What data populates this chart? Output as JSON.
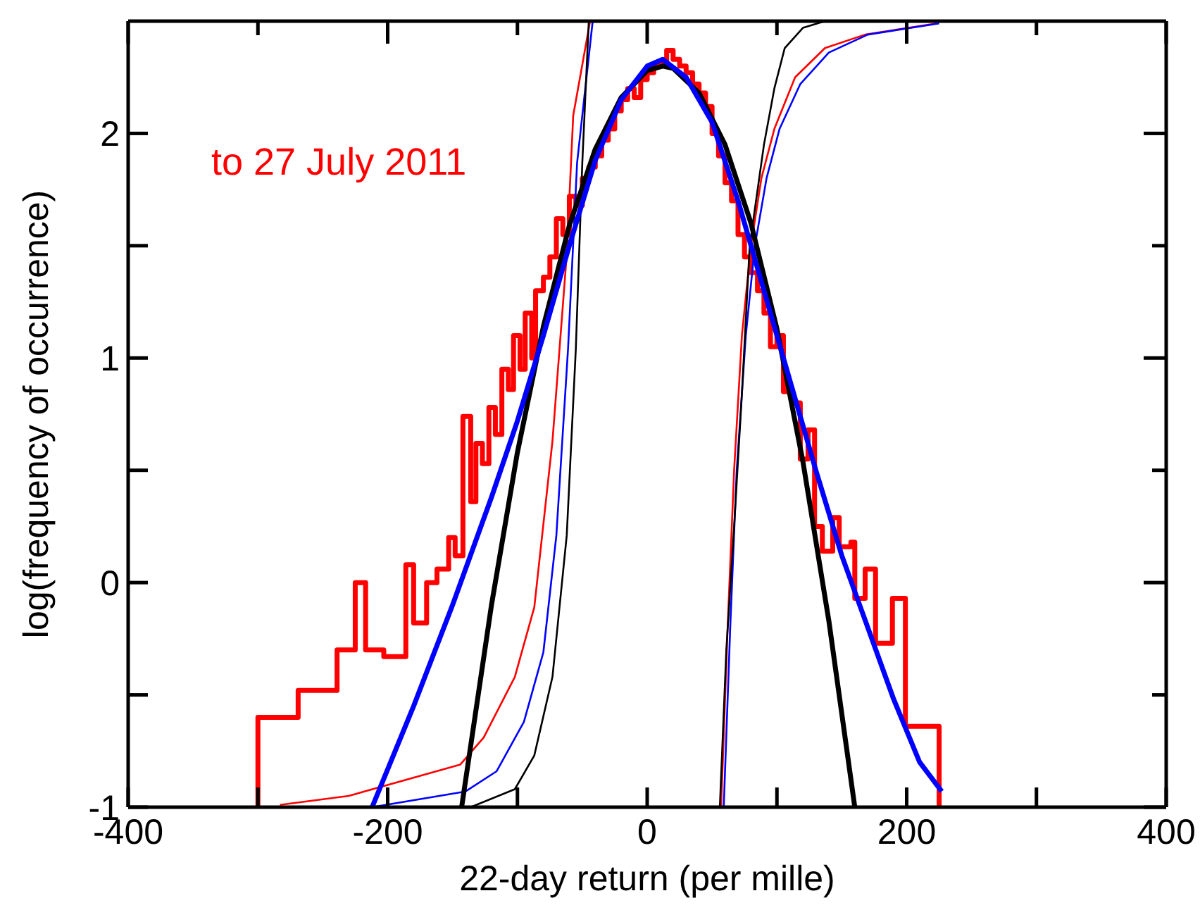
{
  "chart_data": {
    "type": "line",
    "xlabel": "22-day return (per mille)",
    "ylabel": "log(frequency of occurrence)",
    "annotations": [
      "to 27 July 2011"
    ],
    "xlim": [
      -400,
      400
    ],
    "xticks": [
      -400,
      {
        "value": -300,
        "label": null
      },
      -200,
      {
        "value": -100,
        "label": null
      },
      0,
      {
        "value": 100,
        "label": null
      },
      200,
      {
        "value": 300,
        "label": null
      },
      400
    ],
    "ylim": [
      -1,
      2.5
    ],
    "yticks": [
      -1,
      {
        "value": -0.5,
        "label": null
      },
      0,
      {
        "value": 0.5,
        "label": null
      },
      1,
      {
        "value": 1.5,
        "label": null
      },
      2
    ],
    "grid": false,
    "legend": false,
    "marker": "none",
    "line_style": "solid",
    "series": [
      {
        "type": "step",
        "color": "#ff0000",
        "x": [
          -300,
          -300,
          -269,
          -239,
          -225,
          -217,
          -203,
          -186,
          -180,
          -170,
          -162,
          -153,
          -148,
          -142,
          -136,
          -132,
          -127,
          -122,
          -117,
          -112,
          -107,
          -103,
          -98,
          -94,
          -89,
          -86,
          -80,
          -75,
          -70,
          -65,
          -60,
          -55,
          -50,
          -45,
          -40,
          -35,
          -30,
          -25,
          -20,
          -15,
          -10,
          -5,
          0,
          5,
          10,
          15,
          20,
          25,
          30,
          35,
          40,
          45,
          50,
          55,
          60,
          65,
          70,
          75,
          80,
          85,
          90,
          95,
          100,
          105,
          112,
          118,
          124,
          129,
          135,
          143,
          148,
          157,
          160,
          168,
          176,
          189,
          199,
          225
        ],
        "values": [
          -1,
          -0.6,
          -0.48,
          -0.3,
          0.0,
          -0.3,
          -0.33,
          0.08,
          -0.18,
          0.0,
          0.06,
          0.2,
          0.12,
          0.74,
          0.36,
          0.62,
          0.53,
          0.78,
          0.66,
          0.95,
          0.86,
          1.1,
          0.95,
          1.2,
          1.0,
          1.3,
          1.36,
          1.45,
          1.62,
          1.55,
          1.72,
          1.68,
          1.8,
          1.85,
          1.9,
          1.97,
          2.02,
          2.1,
          2.15,
          2.2,
          2.16,
          2.24,
          2.27,
          2.3,
          2.32,
          2.37,
          2.33,
          2.3,
          2.27,
          2.22,
          2.18,
          2.12,
          2.0,
          1.9,
          1.78,
          1.7,
          1.55,
          1.45,
          1.38,
          1.3,
          1.2,
          1.05,
          1.1,
          0.85,
          0.8,
          0.55,
          0.68,
          0.25,
          0.14,
          0.29,
          0.16,
          0.18,
          -0.07,
          0.06,
          -0.27,
          -0.07,
          -0.64,
          -1
        ]
      },
      {
        "type": "line",
        "color": "#ff0000",
        "x": [
          -283,
          -230,
          -144,
          -126,
          -102,
          -87,
          -73,
          -62,
          -57,
          -44
        ],
        "values": [
          -0.99,
          -0.95,
          -0.81,
          -0.69,
          -0.42,
          -0.11,
          0.63,
          1.46,
          2.08,
          2.5
        ]
      },
      {
        "type": "line",
        "color": "#0000ff",
        "x": [
          -212,
          -140,
          -116,
          -95,
          -80,
          -70,
          -61,
          -54,
          -42
        ],
        "values": [
          -1,
          -0.93,
          -0.84,
          -0.62,
          -0.31,
          0.21,
          1.04,
          1.87,
          2.5
        ]
      },
      {
        "type": "line",
        "color": "#000000",
        "x": [
          -136,
          -102,
          -87,
          -73,
          -62,
          -55,
          -50,
          -45
        ],
        "values": [
          -1,
          -0.92,
          -0.77,
          -0.42,
          0.21,
          1.04,
          1.87,
          2.5
        ]
      },
      {
        "type": "line",
        "color": "#ff0000",
        "x": [
          57,
          62,
          67,
          73,
          80,
          88,
          98,
          114,
          137,
          168,
          223
        ],
        "values": [
          -1,
          -0.2,
          0.5,
          1.1,
          1.5,
          1.8,
          2.02,
          2.25,
          2.38,
          2.44,
          2.49
        ]
      },
      {
        "type": "line",
        "color": "#0000ff",
        "x": [
          59,
          64,
          69,
          76,
          83,
          92,
          102,
          118,
          140,
          170,
          225
        ],
        "values": [
          -1,
          -0.2,
          0.5,
          1.1,
          1.5,
          1.8,
          2.02,
          2.22,
          2.36,
          2.44,
          2.49
        ]
      },
      {
        "type": "line",
        "color": "#000000",
        "x": [
          56,
          61,
          67,
          73,
          79,
          90,
          98,
          106,
          120,
          137
        ],
        "values": [
          -1,
          -0.3,
          0.25,
          0.84,
          1.5,
          1.95,
          2.2,
          2.38,
          2.47,
          2.5
        ]
      },
      {
        "type": "line",
        "color": "#000000",
        "x": [
          -143,
          -120,
          -100,
          -80,
          -60,
          -40,
          -20,
          0,
          12,
          20,
          40,
          60,
          80,
          100,
          120,
          140,
          160
        ],
        "values": [
          -1,
          -0.1,
          0.58,
          1.14,
          1.59,
          1.93,
          2.16,
          2.28,
          2.3,
          2.29,
          2.18,
          1.95,
          1.6,
          1.13,
          0.54,
          -0.17,
          -1
        ]
      },
      {
        "type": "line",
        "color": "#0000ff",
        "x": [
          -212,
          -180,
          -150,
          -120,
          -100,
          -80,
          -60,
          -40,
          -20,
          0,
          12,
          30,
          50,
          70,
          90,
          110,
          130,
          150,
          170,
          190,
          210,
          227
        ],
        "values": [
          -1,
          -0.55,
          -0.1,
          0.38,
          0.72,
          1.1,
          1.5,
          1.88,
          2.15,
          2.3,
          2.33,
          2.25,
          2.05,
          1.7,
          1.3,
          0.9,
          0.5,
          0.12,
          -0.2,
          -0.52,
          -0.8,
          -0.93
        ]
      }
    ]
  }
}
